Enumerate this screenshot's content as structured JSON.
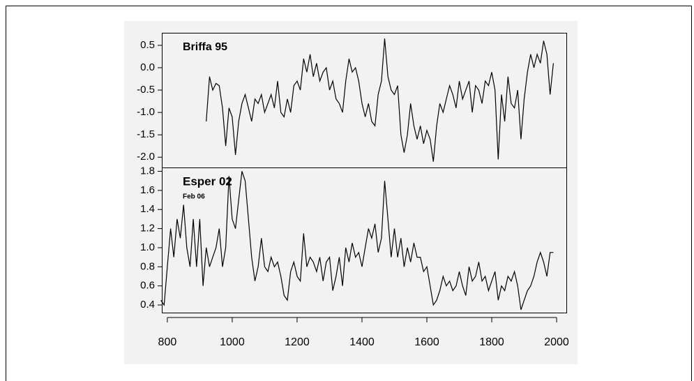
{
  "chart_data": [
    {
      "type": "line",
      "title": "Briffa 95",
      "color": "#000000",
      "x": [
        920,
        930,
        940,
        950,
        960,
        970,
        980,
        990,
        1000,
        1010,
        1020,
        1030,
        1040,
        1050,
        1060,
        1070,
        1080,
        1090,
        1100,
        1110,
        1120,
        1130,
        1140,
        1150,
        1160,
        1170,
        1180,
        1190,
        1200,
        1210,
        1220,
        1230,
        1240,
        1250,
        1260,
        1270,
        1280,
        1290,
        1300,
        1310,
        1320,
        1330,
        1340,
        1350,
        1360,
        1370,
        1380,
        1390,
        1400,
        1410,
        1420,
        1430,
        1440,
        1450,
        1460,
        1470,
        1480,
        1490,
        1500,
        1510,
        1520,
        1530,
        1540,
        1550,
        1560,
        1570,
        1580,
        1590,
        1600,
        1610,
        1620,
        1630,
        1640,
        1650,
        1660,
        1670,
        1680,
        1690,
        1700,
        1710,
        1720,
        1730,
        1740,
        1750,
        1760,
        1770,
        1780,
        1790,
        1800,
        1810,
        1820,
        1830,
        1840,
        1850,
        1860,
        1870,
        1880,
        1890,
        1900,
        1910,
        1920,
        1930,
        1940,
        1950,
        1960,
        1970,
        1980,
        1990
      ],
      "values": [
        -1.2,
        -0.2,
        -0.5,
        -0.35,
        -0.4,
        -0.9,
        -1.75,
        -0.9,
        -1.1,
        -1.95,
        -1.2,
        -0.8,
        -0.6,
        -0.9,
        -1.2,
        -0.7,
        -0.8,
        -0.6,
        -1.0,
        -0.8,
        -0.6,
        -0.9,
        -0.3,
        -1.0,
        -1.1,
        -0.7,
        -1.0,
        -0.4,
        -0.3,
        -0.5,
        0.2,
        -0.1,
        0.3,
        -0.2,
        0.1,
        -0.3,
        -0.1,
        0.0,
        -0.5,
        -0.3,
        -0.7,
        -0.8,
        -1.0,
        -0.3,
        0.2,
        -0.1,
        0.0,
        -0.3,
        -0.8,
        -1.1,
        -0.8,
        -1.2,
        -1.3,
        -0.6,
        -0.3,
        0.65,
        -0.2,
        -0.5,
        -0.6,
        -0.4,
        -1.5,
        -1.9,
        -1.5,
        -0.8,
        -1.3,
        -1.6,
        -1.3,
        -1.7,
        -1.4,
        -1.6,
        -2.1,
        -1.3,
        -0.8,
        -1.0,
        -0.7,
        -0.4,
        -0.6,
        -0.9,
        -0.3,
        -0.7,
        -0.5,
        -0.3,
        -1.0,
        -0.4,
        -0.5,
        -0.8,
        -0.3,
        -0.4,
        -0.1,
        -0.5,
        -2.05,
        -0.6,
        -1.2,
        -0.2,
        -0.8,
        -0.9,
        -0.5,
        -1.6,
        -0.7,
        -0.1,
        0.3,
        0.0,
        0.3,
        0.1,
        0.6,
        0.3,
        -0.6,
        0.1
      ],
      "xlim": [
        783,
        2030
      ],
      "ylim": [
        -2.23,
        0.78
      ],
      "yticks": [
        0.5,
        {
          "value": 0,
          "label": "0.0"
        },
        -0.5,
        {
          "value": -1,
          "label": "-1.0"
        },
        -1.5,
        {
          "value": -2,
          "label": "-2.0"
        }
      ]
    },
    {
      "type": "line",
      "title": "Esper 02",
      "annotation": "Feb 06",
      "color": "#000000",
      "x": [
        780,
        790,
        800,
        810,
        820,
        830,
        840,
        850,
        860,
        870,
        880,
        890,
        900,
        910,
        920,
        930,
        940,
        950,
        960,
        970,
        980,
        990,
        1000,
        1010,
        1020,
        1030,
        1040,
        1050,
        1060,
        1070,
        1080,
        1090,
        1100,
        1110,
        1120,
        1130,
        1140,
        1150,
        1160,
        1170,
        1180,
        1190,
        1200,
        1210,
        1220,
        1230,
        1240,
        1250,
        1260,
        1270,
        1280,
        1290,
        1300,
        1310,
        1320,
        1330,
        1340,
        1350,
        1360,
        1370,
        1380,
        1390,
        1400,
        1410,
        1420,
        1430,
        1440,
        1450,
        1460,
        1470,
        1480,
        1490,
        1500,
        1510,
        1520,
        1530,
        1540,
        1550,
        1560,
        1570,
        1580,
        1590,
        1600,
        1610,
        1620,
        1630,
        1640,
        1650,
        1660,
        1670,
        1680,
        1690,
        1700,
        1710,
        1720,
        1730,
        1740,
        1750,
        1760,
        1770,
        1780,
        1790,
        1800,
        1810,
        1820,
        1830,
        1840,
        1850,
        1860,
        1870,
        1880,
        1890,
        1900,
        1910,
        1920,
        1930,
        1940,
        1950,
        1960,
        1970,
        1980,
        1990
      ],
      "values": [
        0.45,
        0.4,
        0.8,
        1.2,
        0.9,
        1.3,
        1.1,
        1.45,
        1.0,
        0.8,
        1.3,
        0.8,
        1.3,
        0.6,
        1.0,
        0.8,
        0.9,
        1.0,
        1.2,
        0.8,
        1.0,
        1.75,
        1.3,
        1.2,
        1.5,
        1.8,
        1.7,
        1.3,
        0.9,
        0.65,
        0.8,
        1.1,
        0.8,
        0.75,
        0.9,
        0.8,
        0.85,
        0.7,
        0.5,
        0.45,
        0.75,
        0.85,
        0.7,
        0.65,
        1.15,
        0.8,
        0.9,
        0.85,
        0.75,
        0.9,
        0.65,
        0.85,
        0.9,
        0.55,
        0.7,
        0.9,
        0.6,
        1.0,
        0.85,
        1.05,
        0.9,
        0.95,
        0.8,
        1.0,
        1.2,
        1.1,
        1.25,
        0.95,
        1.1,
        1.7,
        1.3,
        0.9,
        1.2,
        0.9,
        1.1,
        0.8,
        1.0,
        0.85,
        1.05,
        0.9,
        0.9,
        0.75,
        0.8,
        0.6,
        0.4,
        0.45,
        0.55,
        0.7,
        0.6,
        0.65,
        0.55,
        0.6,
        0.75,
        0.6,
        0.5,
        0.8,
        0.65,
        0.7,
        0.85,
        0.65,
        0.7,
        0.55,
        0.65,
        0.75,
        0.45,
        0.6,
        0.55,
        0.7,
        0.65,
        0.75,
        0.6,
        0.35,
        0.45,
        0.55,
        0.6,
        0.7,
        0.85,
        0.95,
        0.85,
        0.7,
        0.95,
        0.95
      ],
      "xlim": [
        783,
        2030
      ],
      "ylim": [
        0.32,
        1.84
      ],
      "yticks": [
        1.8,
        1.6,
        1.4,
        1.2,
        {
          "value": 1,
          "label": "1.0"
        },
        0.8,
        0.6,
        0.4
      ],
      "xticks": [
        800,
        1000,
        1200,
        1400,
        1600,
        1800,
        2000
      ]
    }
  ]
}
